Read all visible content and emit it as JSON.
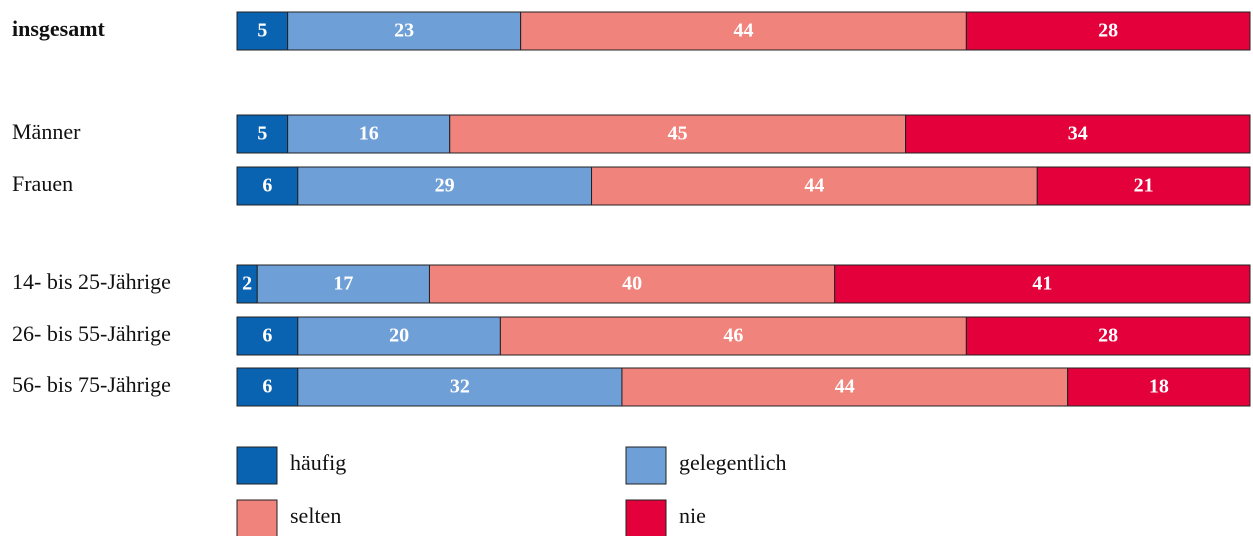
{
  "chart_data": {
    "type": "stacked-bar-horizontal",
    "categories": [
      "insgesamt",
      "Männer",
      "Frauen",
      "14- bis 25-Jährige",
      "26- bis 55-Jährige",
      "56- bis 75-Jährige"
    ],
    "series": [
      {
        "name": "häufig",
        "color": "#0a63b0",
        "values": [
          5,
          5,
          6,
          2,
          6,
          6
        ]
      },
      {
        "name": "gelegentlich",
        "color": "#6e9fd6",
        "values": [
          23,
          16,
          29,
          17,
          20,
          32
        ]
      },
      {
        "name": "selten",
        "color": "#f0837c",
        "values": [
          44,
          45,
          44,
          40,
          46,
          44
        ]
      },
      {
        "name": "nie",
        "color": "#e4003a",
        "values": [
          28,
          34,
          21,
          41,
          28,
          18
        ]
      }
    ]
  }
}
